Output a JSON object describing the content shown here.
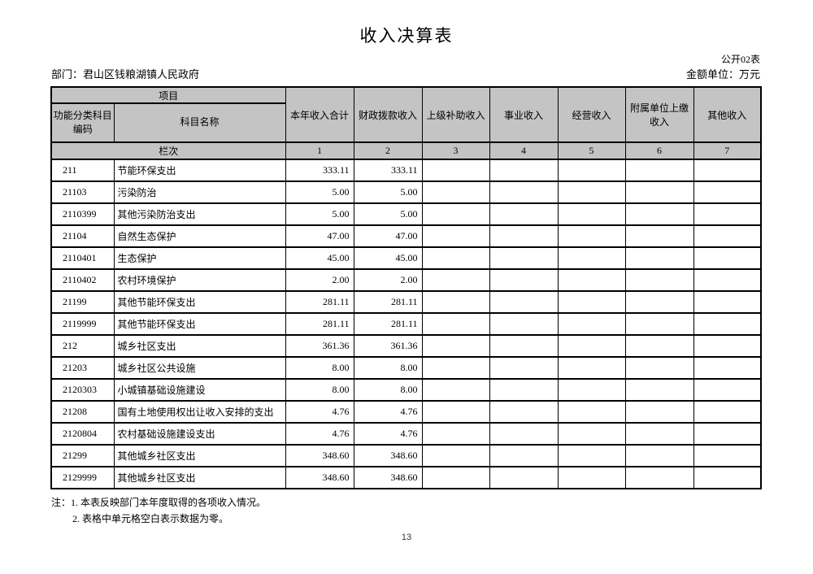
{
  "page": {
    "title": "收入决算表",
    "doc_ref": "公开02表",
    "department": "部门：君山区钱粮湖镇人民政府",
    "unit": "金额单位：万元",
    "notes": {
      "line1": "注：1. 本表反映部门本年度取得的各项收入情况。",
      "line2": "2. 表格中单元格空白表示数据为零。"
    },
    "page_number": "13"
  },
  "table": {
    "group_header": "项目",
    "row_label_header": "栏次",
    "columns": [
      "功能分类科目编码",
      "科目名称",
      "本年收入合计",
      "财政拨款收入",
      "上级补助收入",
      "事业收入",
      "经营收入",
      "附属单位上缴收入",
      "其他收入"
    ],
    "column_numbers": [
      "1",
      "2",
      "3",
      "4",
      "5",
      "6",
      "7"
    ],
    "rows": [
      {
        "code": "211",
        "name": "节能环保支出",
        "values": [
          "333.11",
          "333.11",
          "",
          "",
          "",
          "",
          ""
        ]
      },
      {
        "code": "21103",
        "name": "污染防治",
        "values": [
          "5.00",
          "5.00",
          "",
          "",
          "",
          "",
          ""
        ]
      },
      {
        "code": "2110399",
        "name": "其他污染防治支出",
        "values": [
          "5.00",
          "5.00",
          "",
          "",
          "",
          "",
          ""
        ]
      },
      {
        "code": "21104",
        "name": "自然生态保护",
        "values": [
          "47.00",
          "47.00",
          "",
          "",
          "",
          "",
          ""
        ]
      },
      {
        "code": "2110401",
        "name": "生态保护",
        "values": [
          "45.00",
          "45.00",
          "",
          "",
          "",
          "",
          ""
        ]
      },
      {
        "code": "2110402",
        "name": "农村环境保护",
        "values": [
          "2.00",
          "2.00",
          "",
          "",
          "",
          "",
          ""
        ]
      },
      {
        "code": "21199",
        "name": "其他节能环保支出",
        "values": [
          "281.11",
          "281.11",
          "",
          "",
          "",
          "",
          ""
        ]
      },
      {
        "code": "2119999",
        "name": "其他节能环保支出",
        "values": [
          "281.11",
          "281.11",
          "",
          "",
          "",
          "",
          ""
        ]
      },
      {
        "code": "212",
        "name": "城乡社区支出",
        "values": [
          "361.36",
          "361.36",
          "",
          "",
          "",
          "",
          ""
        ]
      },
      {
        "code": "21203",
        "name": "城乡社区公共设施",
        "values": [
          "8.00",
          "8.00",
          "",
          "",
          "",
          "",
          ""
        ]
      },
      {
        "code": "2120303",
        "name": "小城镇基础设施建设",
        "values": [
          "8.00",
          "8.00",
          "",
          "",
          "",
          "",
          ""
        ]
      },
      {
        "code": "21208",
        "name": "国有土地使用权出让收入安排的支出",
        "values": [
          "4.76",
          "4.76",
          "",
          "",
          "",
          "",
          ""
        ]
      },
      {
        "code": "2120804",
        "name": "农村基础设施建设支出",
        "values": [
          "4.76",
          "4.76",
          "",
          "",
          "",
          "",
          ""
        ]
      },
      {
        "code": "21299",
        "name": "其他城乡社区支出",
        "values": [
          "348.60",
          "348.60",
          "",
          "",
          "",
          "",
          ""
        ]
      },
      {
        "code": "2129999",
        "name": "其他城乡社区支出",
        "values": [
          "348.60",
          "348.60",
          "",
          "",
          "",
          "",
          ""
        ]
      }
    ]
  },
  "colors": {
    "header_bg": "#c4c4c4",
    "border": "#000000",
    "page_bg": "#ffffff"
  }
}
